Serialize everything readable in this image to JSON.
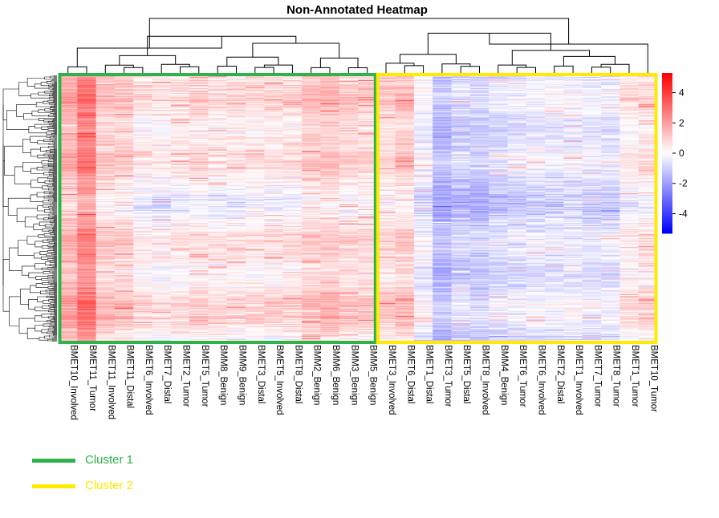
{
  "chart_data": {
    "type": "heatmap",
    "title": "Non-Annotated Heatmap",
    "columns": [
      "BMET10_Involved",
      "BMET11_Tumor",
      "BMET11_Involved",
      "BMET11_Distal",
      "BMET6_Involved",
      "BMET7_Distal",
      "BMET2_Tumor",
      "BMET5_Tumor",
      "BMM8_Benign",
      "BMM9_Benign",
      "BMET3_Distal",
      "BMET5_Involved",
      "BMET8_Distal",
      "BMM2_Benign",
      "BMM6_Benign",
      "BMM3_Benign",
      "BMM5_Benign",
      "BMET3_Involved",
      "BMET6_Distal",
      "BMET1_Distal",
      "BMET3_Tumor",
      "BMET5_Distal",
      "BMET8_Involved",
      "BMM4_Benign",
      "BMET6_Tumor",
      "BMET6_Involved",
      "BMET2_Distal",
      "BMET1_Involved",
      "BMET7_Tumor",
      "BMET8_Tumor",
      "BMET1_Tumor",
      "BMET10_Tumor"
    ],
    "column_mean_values": [
      1.4,
      2.4,
      0.9,
      0.8,
      0.2,
      0.1,
      0.3,
      0.5,
      0.2,
      0.3,
      0.3,
      0.4,
      0.4,
      0.9,
      1.0,
      0.7,
      0.6,
      0.6,
      0.9,
      -0.3,
      -1.5,
      -1.0,
      -1.1,
      -0.8,
      -0.7,
      -0.5,
      -0.5,
      -0.4,
      -0.6,
      -0.6,
      0.2,
      0.4
    ],
    "color_scale": {
      "min": -5.3,
      "max": 5.3,
      "low": "#0000ff",
      "mid": "#ffffff",
      "high": "#ff0000"
    },
    "colorbar_ticks": [
      "4",
      "2",
      "0",
      "-2",
      "-4"
    ],
    "colorbar_tick_values": [
      4,
      2,
      0,
      -2,
      -4
    ],
    "clusters": [
      {
        "name": "Cluster 1",
        "color": "#2eb34a",
        "start_col": 0,
        "end_col": 16
      },
      {
        "name": "Cluster 2",
        "color": "#ffea00",
        "start_col": 17,
        "end_col": 31
      }
    ],
    "row_dendrogram": true,
    "column_dendrogram": true,
    "row_count_approx": 330
  },
  "legend": {
    "items": [
      {
        "label": "Cluster 1",
        "color": "#2eb34a"
      },
      {
        "label": "Cluster 2",
        "color": "#ffea00"
      }
    ]
  }
}
